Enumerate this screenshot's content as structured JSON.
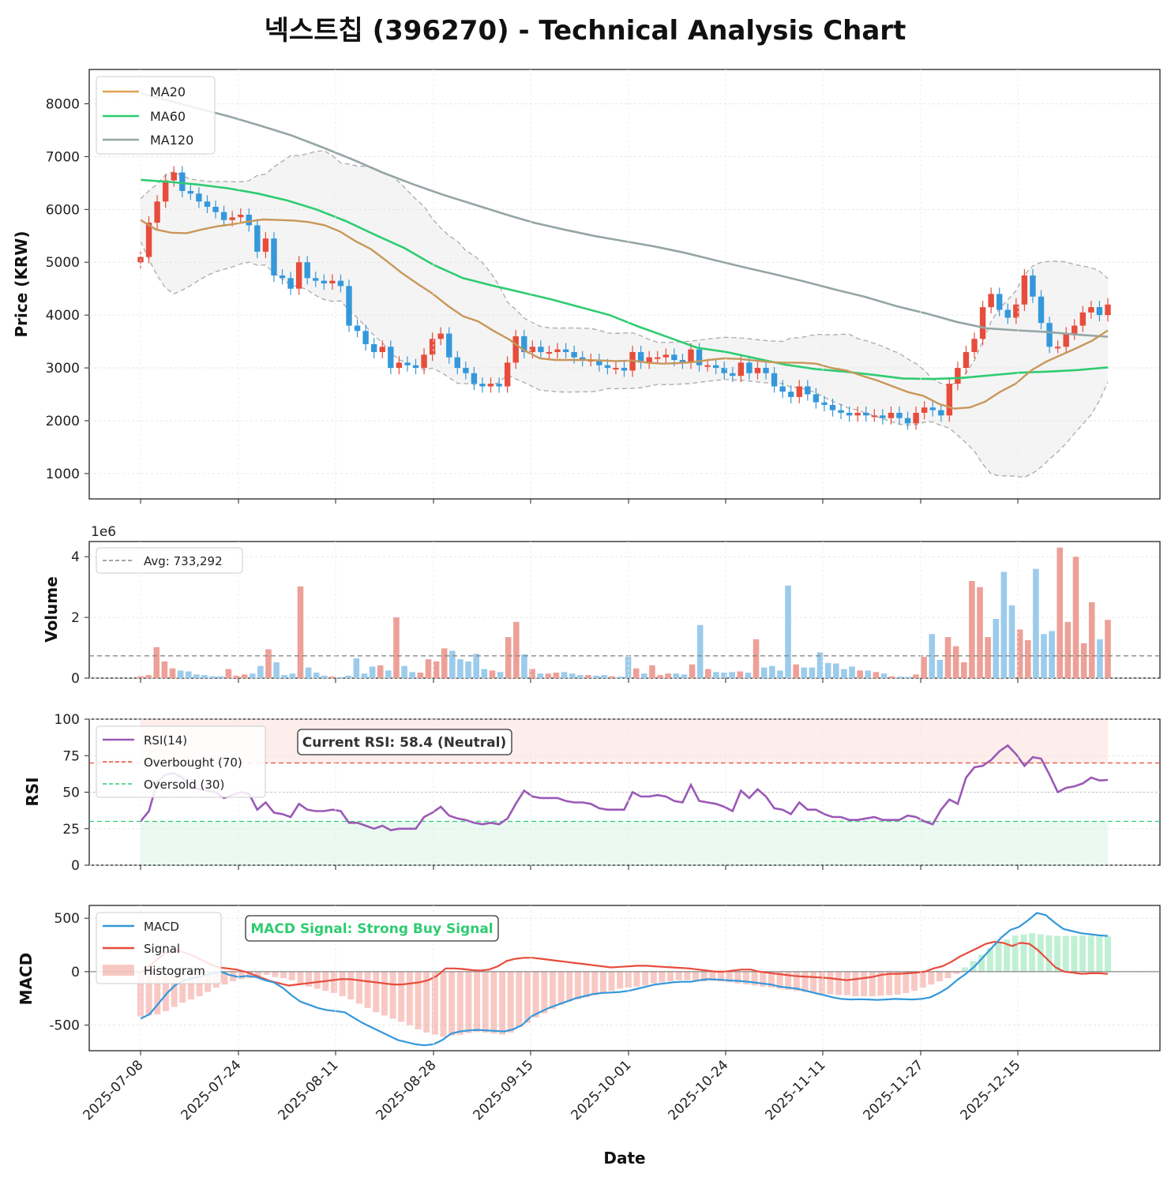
{
  "title": "넥스트칩 (396270) - Technical Analysis Chart",
  "colors": {
    "up": "#e74c3c",
    "down": "#3498db",
    "ma20": "#e0a050",
    "ma60": "#2ecc71",
    "ma120": "#95a5a6",
    "rsi": "#9b59b6",
    "macd": "#3498db",
    "signal": "#e74c3c",
    "hist_pos": "#2ecc71",
    "hist_neg": "#e74c3c",
    "band": "#aaaaaa",
    "overbought": "#e74c3c",
    "oversold": "#2ecc71",
    "buy_text": "#2ecc71"
  },
  "chart_data": [
    {
      "type": "candlestick",
      "panel": "price",
      "ylabel": "Price (KRW)",
      "ylim": [
        520,
        8650
      ],
      "yticks": [
        "1000",
        "2000",
        "3000",
        "4000",
        "5000",
        "6000",
        "7000",
        "8000"
      ],
      "legend": [
        "MA20",
        "MA60",
        "MA120"
      ],
      "legend_position": "upper-left",
      "ohlc_close": [
        5100,
        5750,
        6150,
        6550,
        6700,
        6350,
        6300,
        6150,
        6050,
        5950,
        5800,
        5850,
        5900,
        5700,
        5200,
        5450,
        4750,
        4700,
        4500,
        5000,
        4700,
        4650,
        4600,
        4650,
        4550,
        3800,
        3700,
        3450,
        3300,
        3400,
        3000,
        3100,
        3050,
        3000,
        3250,
        3550,
        3650,
        3200,
        3000,
        2900,
        2700,
        2650,
        2700,
        2650,
        3100,
        3600,
        3300,
        3400,
        3300,
        3300,
        3350,
        3300,
        3200,
        3150,
        3150,
        3050,
        3000,
        3000,
        2950,
        3300,
        3100,
        3200,
        3200,
        3250,
        3150,
        3100,
        3350,
        3050,
        3050,
        3000,
        2900,
        2850,
        3100,
        2900,
        3000,
        2900,
        2650,
        2550,
        2450,
        2650,
        2500,
        2350,
        2300,
        2200,
        2150,
        2100,
        2150,
        2100,
        2100,
        2050,
        2150,
        2050,
        1950,
        2150,
        2250,
        2200,
        2100,
        2700,
        3000,
        3300,
        3550,
        4150,
        4400,
        4100,
        3950,
        4200,
        4750,
        4350,
        3850,
        3400,
        3400,
        3650,
        3800,
        4050,
        4150,
        4000,
        4200
      ],
      "ma20": [
        5800,
        5620,
        5560,
        5550,
        5620,
        5680,
        5720,
        5770,
        5810,
        5800,
        5790,
        5760,
        5700,
        5580,
        5400,
        5250,
        5030,
        4800,
        4600,
        4410,
        4180,
        3980,
        3880,
        3700,
        3540,
        3330,
        3180,
        3150,
        3150,
        3150,
        3140,
        3130,
        3140,
        3100,
        3080,
        3090,
        3110,
        3150,
        3180,
        3170,
        3140,
        3110,
        3100,
        3100,
        3080,
        3000,
        2950,
        2850,
        2760,
        2650,
        2540,
        2470,
        2320,
        2230,
        2250,
        2360,
        2550,
        2700,
        2950,
        3120,
        3250,
        3380,
        3520,
        3710
      ],
      "ma60": [
        6560,
        6520,
        6470,
        6400,
        6300,
        6170,
        6000,
        5780,
        5520,
        5270,
        4950,
        4700,
        4560,
        4430,
        4300,
        4150,
        4000,
        3780,
        3580,
        3380,
        3300,
        3180,
        3060,
        2980,
        2930,
        2870,
        2800,
        2790,
        2810,
        2860,
        2910,
        2930,
        2960,
        3010
      ],
      "ma120": [
        8200,
        8050,
        7900,
        7750,
        7580,
        7400,
        7180,
        6950,
        6700,
        6480,
        6280,
        6100,
        5920,
        5750,
        5620,
        5500,
        5400,
        5300,
        5180,
        5040,
        4900,
        4770,
        4630,
        4480,
        4340,
        4170,
        4030,
        3870,
        3750,
        3710,
        3680,
        3630,
        3590
      ]
    },
    {
      "type": "bar",
      "panel": "volume",
      "ylabel": "Volume",
      "scale_label": "1e6",
      "ylim": [
        0,
        4.5
      ],
      "yticks": [
        "0",
        "2",
        "4"
      ],
      "avg_line": 0.733,
      "legend": [
        "Avg: 733,292"
      ],
      "values": [
        0.06,
        0.1,
        1.02,
        0.55,
        0.32,
        0.25,
        0.22,
        0.12,
        0.1,
        0.06,
        0.06,
        0.3,
        0.08,
        0.12,
        0.15,
        0.4,
        0.95,
        0.52,
        0.1,
        0.15,
        3.02,
        0.35,
        0.18,
        0.08,
        0.05,
        0.03,
        0.08,
        0.65,
        0.15,
        0.38,
        0.42,
        0.25,
        2.0,
        0.4,
        0.2,
        0.18,
        0.62,
        0.55,
        0.98,
        0.9,
        0.62,
        0.55,
        0.8,
        0.3,
        0.25,
        0.2,
        1.35,
        1.85,
        0.78,
        0.3,
        0.15,
        0.15,
        0.18,
        0.2,
        0.15,
        0.1,
        0.1,
        0.08,
        0.1,
        0.06,
        0.05,
        0.7,
        0.32,
        0.15,
        0.42,
        0.1,
        0.15,
        0.15,
        0.12,
        0.45,
        1.75,
        0.3,
        0.2,
        0.18,
        0.2,
        0.22,
        0.18,
        1.28,
        0.35,
        0.4,
        0.25,
        3.05,
        0.45,
        0.35,
        0.35,
        0.85,
        0.5,
        0.48,
        0.3,
        0.38,
        0.25,
        0.25,
        0.2,
        0.15,
        0.06,
        0.05,
        0.04,
        0.12,
        0.7,
        1.45,
        0.6,
        1.35,
        1.05,
        0.52,
        3.2,
        3.0,
        1.35,
        1.95,
        3.5,
        2.4,
        1.6,
        1.25,
        3.6,
        1.45,
        1.55,
        4.3,
        1.85,
        4.0,
        1.15,
        2.5,
        1.28,
        1.92
      ]
    },
    {
      "type": "line",
      "panel": "rsi",
      "ylabel": "RSI",
      "ylim": [
        0,
        100
      ],
      "yticks": [
        "0",
        "25",
        "50",
        "75",
        "100"
      ],
      "legend": [
        "RSI(14)",
        "Overbought (70)",
        "Oversold (30)"
      ],
      "annotation": "Current RSI: 58.4 (Neutral)",
      "overbought": 70,
      "oversold": 30,
      "values": [
        30,
        37,
        57,
        62,
        63,
        60,
        54,
        52,
        51,
        50,
        46,
        48,
        50,
        49,
        38,
        43,
        36,
        35,
        33,
        42,
        38,
        37,
        37,
        38,
        37,
        29,
        29,
        27,
        25,
        27,
        24,
        25,
        25,
        25,
        33,
        36,
        40,
        34,
        32,
        31,
        29,
        28,
        29,
        28,
        32,
        42,
        51,
        47,
        46,
        46,
        46,
        44,
        43,
        43,
        42,
        39,
        38,
        38,
        38,
        50,
        47,
        47,
        48,
        47,
        44,
        43,
        55,
        44,
        43,
        42,
        40,
        37,
        51,
        46,
        52,
        47,
        39,
        38,
        35,
        43,
        38,
        38,
        35,
        33,
        33,
        31,
        31,
        32,
        33,
        31,
        31,
        31,
        34,
        33,
        30,
        28,
        38,
        45,
        42,
        60,
        67,
        68,
        72,
        78,
        82,
        76,
        68,
        74,
        73,
        62,
        50,
        53,
        54,
        56,
        60,
        58,
        58.4
      ]
    },
    {
      "type": "line",
      "panel": "macd",
      "ylabel": "MACD",
      "ylim": [
        -740,
        620
      ],
      "yticks": [
        "-500",
        "0",
        "500"
      ],
      "legend": [
        "MACD",
        "Signal",
        "Histogram"
      ],
      "annotation": "MACD Signal: Strong Buy Signal",
      "macd": [
        -440,
        -400,
        -300,
        -200,
        -120,
        -80,
        -60,
        -40,
        -20,
        0,
        -30,
        -50,
        -40,
        -50,
        -80,
        -100,
        -150,
        -220,
        -280,
        -310,
        -340,
        -360,
        -370,
        -380,
        -430,
        -480,
        -520,
        -560,
        -600,
        -640,
        -660,
        -680,
        -690,
        -680,
        -640,
        -580,
        -560,
        -550,
        -545,
        -550,
        -555,
        -560,
        -540,
        -500,
        -420,
        -380,
        -340,
        -310,
        -280,
        -250,
        -230,
        -210,
        -200,
        -195,
        -190,
        -180,
        -160,
        -140,
        -120,
        -110,
        -100,
        -95,
        -95,
        -80,
        -70,
        -75,
        -80,
        -85,
        -90,
        -100,
        -110,
        -120,
        -140,
        -150,
        -160,
        -180,
        -200,
        -220,
        -240,
        -255,
        -260,
        -258,
        -260,
        -265,
        -260,
        -255,
        -258,
        -260,
        -255,
        -240,
        -200,
        -150,
        -80,
        -20,
        50,
        140,
        230,
        320,
        390,
        420,
        480,
        550,
        530,
        460,
        400,
        380,
        360,
        350,
        340,
        335
      ],
      "signal": [
        -10,
        50,
        120,
        180,
        200,
        180,
        150,
        110,
        70,
        40,
        30,
        20,
        0,
        -30,
        -60,
        -90,
        -110,
        -130,
        -120,
        -110,
        -100,
        -90,
        -80,
        -70,
        -70,
        -80,
        -90,
        -100,
        -110,
        -120,
        -120,
        -110,
        -100,
        -80,
        -40,
        30,
        30,
        25,
        15,
        10,
        20,
        50,
        100,
        120,
        130,
        130,
        120,
        110,
        100,
        90,
        80,
        70,
        60,
        50,
        40,
        45,
        50,
        55,
        55,
        50,
        45,
        40,
        35,
        30,
        20,
        10,
        0,
        0,
        10,
        20,
        20,
        0,
        -10,
        -20,
        -30,
        -40,
        -45,
        -50,
        -55,
        -60,
        -70,
        -80,
        -70,
        -60,
        -50,
        -30,
        -20,
        -20,
        -15,
        -10,
        0,
        30,
        50,
        90,
        140,
        180,
        220,
        260,
        280,
        270,
        240,
        270,
        260,
        200,
        120,
        40,
        0,
        -10,
        -20,
        -15,
        -15,
        -20
      ],
      "histogram": [
        -420,
        -410,
        -400,
        -370,
        -330,
        -290,
        -260,
        -230,
        -190,
        -150,
        -120,
        -90,
        -70,
        -60,
        -40,
        -30,
        -50,
        -60,
        -80,
        -110,
        -140,
        -160,
        -180,
        -200,
        -230,
        -260,
        -300,
        -340,
        -380,
        -410,
        -440,
        -470,
        -500,
        -540,
        -570,
        -590,
        -610,
        -600,
        -590,
        -575,
        -565,
        -570,
        -580,
        -590,
        -570,
        -520,
        -480,
        -430,
        -390,
        -350,
        -310,
        -280,
        -260,
        -240,
        -220,
        -200,
        -180,
        -160,
        -150,
        -140,
        -130,
        -110,
        -100,
        -90,
        -80,
        -80,
        -90,
        -90,
        -85,
        -90,
        -100,
        -110,
        -120,
        -130,
        -140,
        -150,
        -160,
        -170,
        -180,
        -190,
        -200,
        -210,
        -210,
        -220,
        -220,
        -230,
        -230,
        -230,
        -225,
        -220,
        -215,
        -200,
        -180,
        -150,
        -120,
        -90,
        -60,
        -20,
        40,
        100,
        160,
        220,
        270,
        300,
        340,
        350,
        360,
        350,
        340,
        335,
        335,
        335,
        340,
        335,
        330,
        330
      ]
    }
  ],
  "x_axis": {
    "label": "Date",
    "ticks": [
      "2025-07-08",
      "2025-07-24",
      "2025-08-11",
      "2025-08-28",
      "2025-09-15",
      "2025-10-01",
      "2025-10-24",
      "2025-11-11",
      "2025-11-27",
      "2025-12-15"
    ]
  }
}
